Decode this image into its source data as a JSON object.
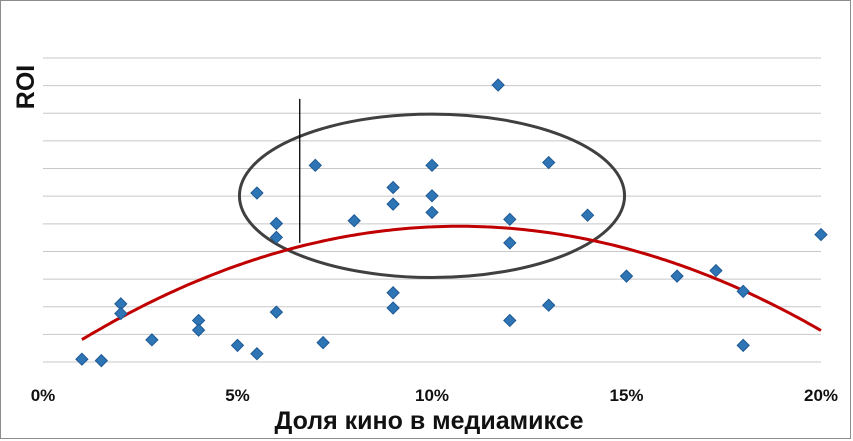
{
  "chart_data": {
    "type": "scatter",
    "title": "",
    "xlabel": "Доля кино в медиамиксе",
    "ylabel": "ROI",
    "x_unit": "%",
    "xlim": [
      0,
      20
    ],
    "ylim": [
      0,
      10
    ],
    "x_ticks": [
      0,
      5,
      10,
      15,
      20
    ],
    "x_tick_labels": [
      "0%",
      "5%",
      "10%",
      "15%",
      "20%"
    ],
    "y_tick_labels_shown": false,
    "grid": "horizontal",
    "legend": "none",
    "points": [
      {
        "x": 1.0,
        "y": 0.1
      },
      {
        "x": 1.5,
        "y": 0.05
      },
      {
        "x": 2.0,
        "y": 2.1
      },
      {
        "x": 2.0,
        "y": 1.75
      },
      {
        "x": 2.8,
        "y": 0.8
      },
      {
        "x": 4.0,
        "y": 1.5
      },
      {
        "x": 4.0,
        "y": 1.15
      },
      {
        "x": 5.0,
        "y": 0.6
      },
      {
        "x": 5.5,
        "y": 0.3
      },
      {
        "x": 5.5,
        "y": 6.1
      },
      {
        "x": 6.0,
        "y": 5.0
      },
      {
        "x": 6.0,
        "y": 4.5
      },
      {
        "x": 6.0,
        "y": 1.8
      },
      {
        "x": 7.0,
        "y": 7.1
      },
      {
        "x": 7.2,
        "y": 0.7
      },
      {
        "x": 8.0,
        "y": 5.1
      },
      {
        "x": 9.0,
        "y": 6.3
      },
      {
        "x": 9.0,
        "y": 5.7
      },
      {
        "x": 9.0,
        "y": 2.5
      },
      {
        "x": 9.0,
        "y": 1.95
      },
      {
        "x": 10.0,
        "y": 7.1
      },
      {
        "x": 10.0,
        "y": 6.0
      },
      {
        "x": 10.0,
        "y": 5.4
      },
      {
        "x": 11.7,
        "y": 10.0
      },
      {
        "x": 12.0,
        "y": 5.15
      },
      {
        "x": 12.0,
        "y": 4.3
      },
      {
        "x": 12.0,
        "y": 1.5
      },
      {
        "x": 13.0,
        "y": 7.2
      },
      {
        "x": 13.0,
        "y": 2.05
      },
      {
        "x": 14.0,
        "y": 5.3
      },
      {
        "x": 15.0,
        "y": 3.1
      },
      {
        "x": 16.3,
        "y": 3.1
      },
      {
        "x": 17.3,
        "y": 3.3
      },
      {
        "x": 18.0,
        "y": 2.55
      },
      {
        "x": 18.0,
        "y": 0.6
      },
      {
        "x": 20.0,
        "y": 4.6
      }
    ],
    "trendline": {
      "type": "polynomial",
      "color": "#c00000",
      "x_range": [
        1.0,
        20.0
      ],
      "vertex": [
        10.7,
        4.9
      ],
      "curvature": -0.0435
    },
    "annotation_ellipse": {
      "center": [
        10.0,
        6.0
      ],
      "x_radius": 9.9,
      "y_radius": 2.95,
      "color": "#404040"
    },
    "annotation_line": {
      "x": 6.6,
      "y_range": [
        4.3,
        9.5
      ],
      "color": "#000000"
    },
    "colors": {
      "marker": "#2e75b6",
      "marker_edge": "#1f5a94",
      "grid": "#c8c8c8"
    }
  }
}
